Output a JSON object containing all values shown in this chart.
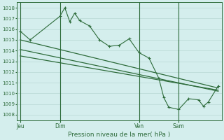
{
  "bg_color": "#d4eeed",
  "grid_color": "#b8d8d4",
  "line_color": "#2d6b3a",
  "ylabel_ticks": [
    1008,
    1009,
    1010,
    1011,
    1012,
    1013,
    1014,
    1015,
    1016,
    1017,
    1018
  ],
  "ylim": [
    1007.5,
    1018.5
  ],
  "xlabel": "Pression niveau de la mer( hPa )",
  "xtick_labels": [
    "Jeu",
    "Dim",
    "Ven",
    "Sam"
  ],
  "xtick_positions": [
    0,
    24,
    72,
    96
  ],
  "vline_positions": [
    0,
    24,
    72,
    96
  ],
  "xlim": [
    -2,
    122
  ],
  "series1_x": [
    0,
    6,
    24,
    27,
    30,
    33,
    36,
    42,
    48,
    54,
    60,
    66,
    72,
    78,
    84,
    87,
    90,
    96,
    102,
    108,
    111,
    114,
    120
  ],
  "series1_y": [
    1015.8,
    1015.0,
    1017.2,
    1018.0,
    1016.7,
    1017.5,
    1016.8,
    1016.3,
    1015.0,
    1014.4,
    1014.5,
    1015.1,
    1013.8,
    1013.3,
    1011.4,
    1009.6,
    1008.7,
    1008.5,
    1009.5,
    1009.4,
    1008.8,
    1009.2,
    1010.7
  ],
  "series2_x": [
    0,
    120
  ],
  "series2_y": [
    1015.0,
    1010.5
  ],
  "series3_x": [
    0,
    120
  ],
  "series3_y": [
    1014.1,
    1010.2
  ],
  "series4_x": [
    0,
    120
  ],
  "series4_y": [
    1013.5,
    1010.3
  ]
}
